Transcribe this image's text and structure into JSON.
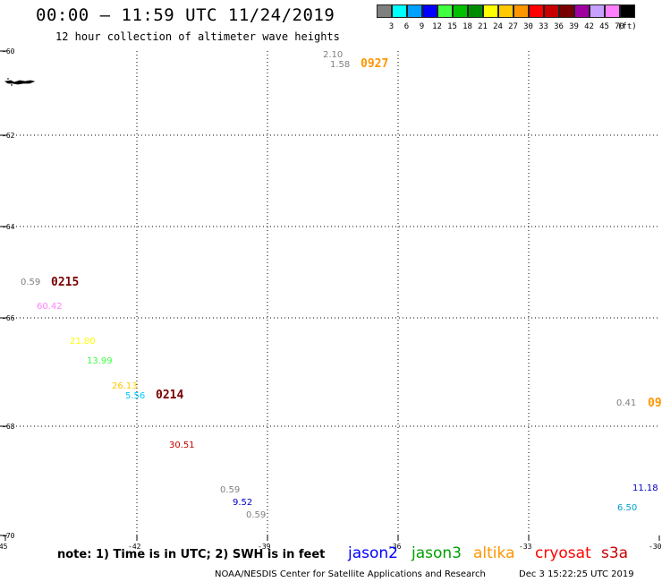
{
  "header": {
    "title": "00:00 – 11:59 UTC 11/24/2019",
    "subtitle": "12 hour collection of altimeter wave heights"
  },
  "legend": {
    "unit": "(ft)",
    "bins": [
      {
        "label": "3",
        "color": "#7f7f7f"
      },
      {
        "label": "6",
        "color": "#00ffff"
      },
      {
        "label": "9",
        "color": "#00a0ff"
      },
      {
        "label": "12",
        "color": "#0000ff"
      },
      {
        "label": "15",
        "color": "#40ff40"
      },
      {
        "label": "18",
        "color": "#00c000"
      },
      {
        "label": "21",
        "color": "#008c00"
      },
      {
        "label": "24",
        "color": "#ffff00"
      },
      {
        "label": "27",
        "color": "#ffc800"
      },
      {
        "label": "30",
        "color": "#ff9600"
      },
      {
        "label": "33",
        "color": "#ff0000"
      },
      {
        "label": "36",
        "color": "#c80000"
      },
      {
        "label": "39",
        "color": "#780000"
      },
      {
        "label": "42",
        "color": "#a000a0"
      },
      {
        "label": "45",
        "color": "#c8a0ff"
      },
      {
        "label": "70",
        "color": "#ff80ff"
      },
      {
        "label": "",
        "color": "#000000"
      }
    ]
  },
  "map": {
    "lat_labels": [
      "-60",
      "-62",
      "-64",
      "-66",
      "-68",
      "-70"
    ],
    "lon_labels": [
      "-45",
      "-42",
      "-39",
      "-36",
      "-33",
      "-30"
    ],
    "observations": [
      {
        "text": "2.10",
        "color": "#7f7f7f"
      },
      {
        "text": "1.58",
        "color": "#7f7f7f"
      },
      {
        "text": "0.59",
        "color": "#7f7f7f"
      },
      {
        "text": "60.42",
        "color": "#ff80ff"
      },
      {
        "text": "21.80",
        "color": "#ffff00"
      },
      {
        "text": "13.99",
        "color": "#40ff40"
      },
      {
        "text": "26.13",
        "color": "#ffc800"
      },
      {
        "text": "5.56",
        "color": "#00c8ff"
      },
      {
        "text": "30.51",
        "color": "#c80000"
      },
      {
        "text": "0.59",
        "color": "#7f7f7f"
      },
      {
        "text": "9.52",
        "color": "#0000c0"
      },
      {
        "text": "0.59",
        "color": "#7f7f7f"
      },
      {
        "text": "0.41",
        "color": "#7f7f7f"
      },
      {
        "text": "11.18",
        "color": "#0000c0"
      },
      {
        "text": "6.50",
        "color": "#00a0d0"
      }
    ],
    "pass_times": [
      {
        "text": "0927",
        "color": "#ff9600"
      },
      {
        "text": "0215",
        "color": "#780000"
      },
      {
        "text": "0214",
        "color": "#780000"
      },
      {
        "text": "09",
        "color": "#ff9600"
      }
    ]
  },
  "footer": {
    "note": "note: 1) Time is in UTC; 2) SWH is in feet",
    "satellites": [
      {
        "name": "jason2",
        "color": "#0000ff"
      },
      {
        "name": "jason3",
        "color": "#00a000"
      },
      {
        "name": "altika",
        "color": "#ff9600"
      },
      {
        "name": "cryosat",
        "color": "#ff0000"
      },
      {
        "name": "s3a",
        "color": "#c80000"
      }
    ],
    "credit": "NOAA/NESDIS Center for Satellite Applications and Research",
    "generated": "Dec  3 15:22:25 UTC 2019"
  }
}
